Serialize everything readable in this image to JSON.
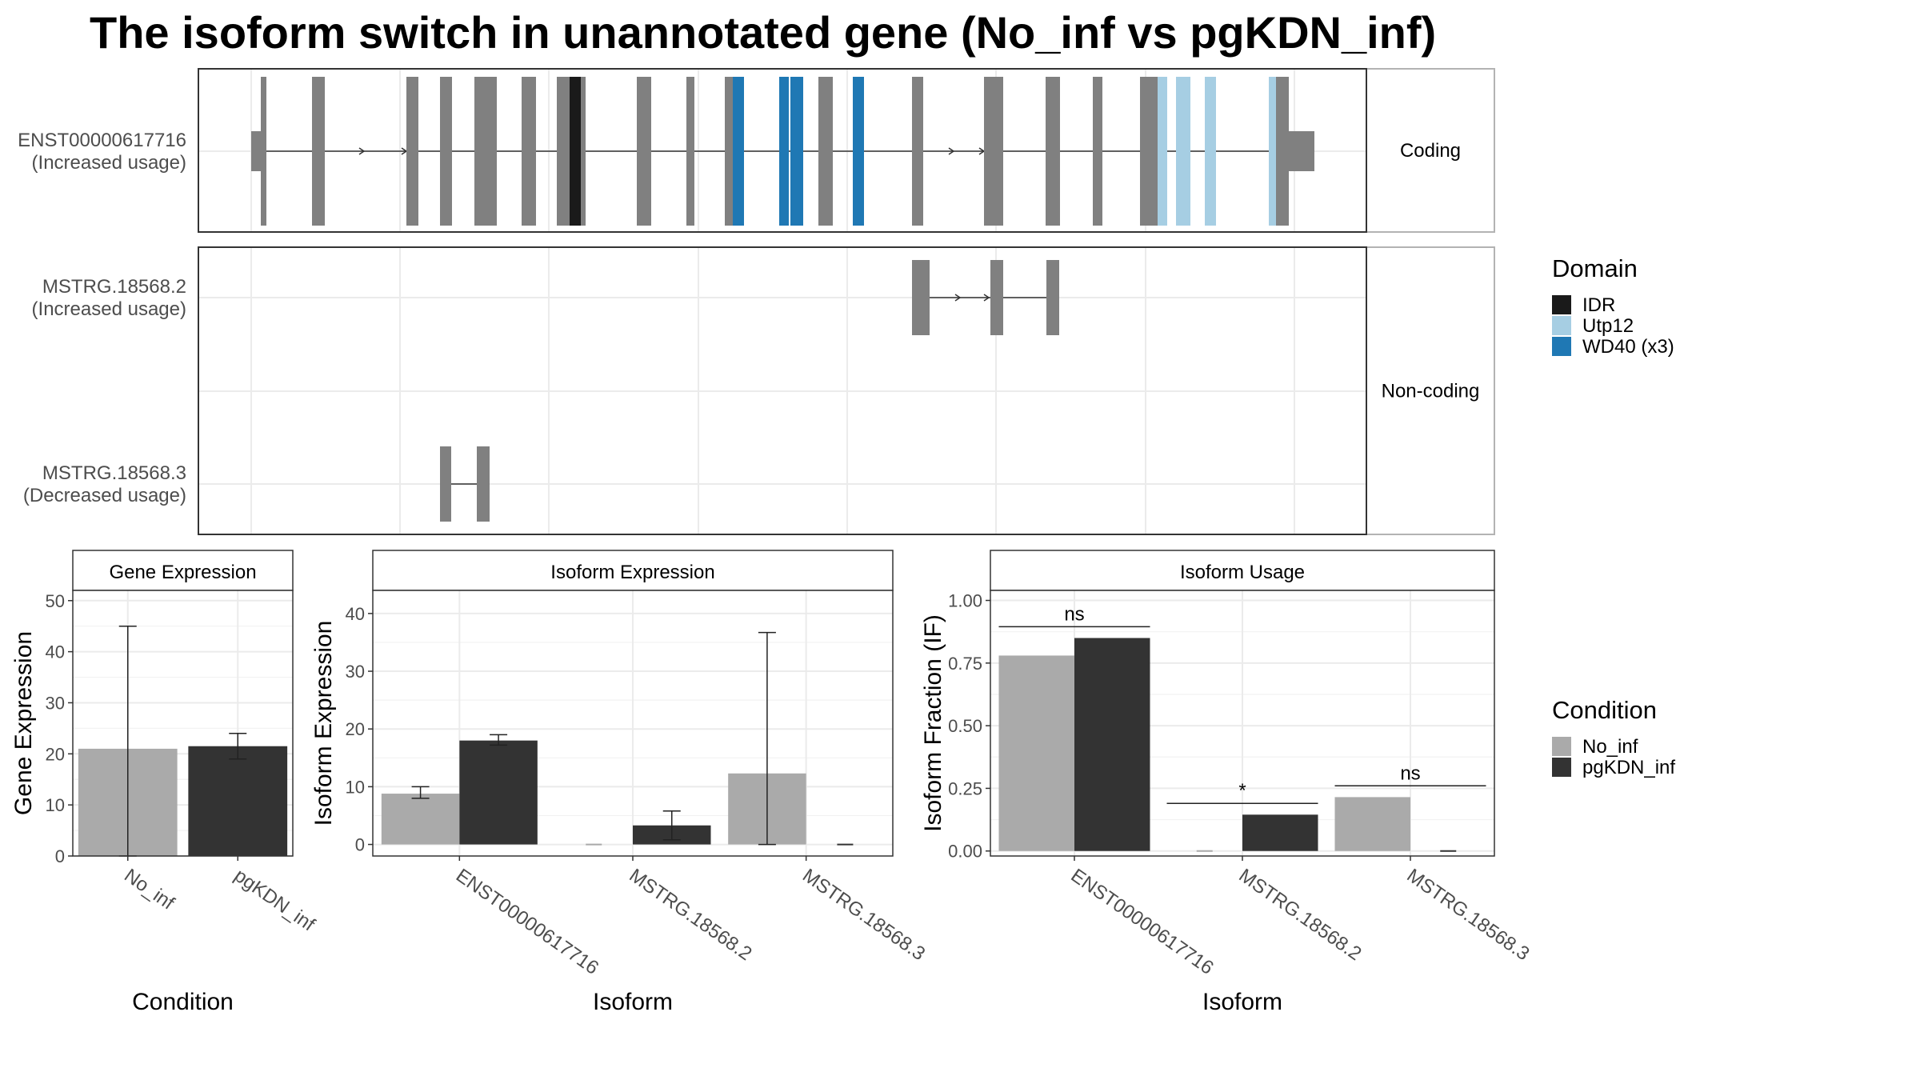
{
  "title": "The isoform switch in unannotated gene (No_inf vs pgKDN_inf)",
  "colors": {
    "exon": "#808080",
    "IDR": "#1a1a1a",
    "Utp12": "#a6cee3",
    "WD40": "#1f78b4",
    "No_inf": "#aaaaaa",
    "pgKDN_inf": "#333333"
  },
  "structure": {
    "panels": [
      {
        "strip": "Coding",
        "tracks": [
          {
            "id": "ENST00000617716",
            "label": "ENST00000617716",
            "sublabel": "(Increased usage)",
            "coding": true
          }
        ]
      },
      {
        "strip": "Non-coding",
        "tracks": [
          {
            "id": "MSTRG.18568.2",
            "label": "MSTRG.18568.2",
            "sublabel": "(Increased usage)",
            "coding": false
          },
          {
            "id": "MSTRG.18568.3",
            "label": "MSTRG.18568.3",
            "sublabel": "(Decreased usage)",
            "coding": false
          }
        ]
      }
    ]
  },
  "domain_legend": {
    "title": "Domain",
    "items": [
      {
        "label": "IDR",
        "color": "#1a1a1a"
      },
      {
        "label": "Utp12",
        "color": "#a6cee3"
      },
      {
        "label": "WD40 (x3)",
        "color": "#1f78b4"
      }
    ]
  },
  "condition_legend": {
    "title": "Condition",
    "items": [
      {
        "label": "No_inf",
        "color": "#aaaaaa"
      },
      {
        "label": "pgKDN_inf",
        "color": "#333333"
      }
    ]
  },
  "chart_data": [
    {
      "type": "bar",
      "strip": "Gene Expression",
      "xlabel": "Condition",
      "ylabel": "Gene Expression",
      "categories": [
        "No_inf",
        "pgKDN_inf"
      ],
      "values": [
        21,
        21.5
      ],
      "error_low": [
        0,
        19
      ],
      "error_high": [
        45,
        24
      ],
      "ylim": [
        0,
        52
      ],
      "yticks": [
        0,
        10,
        20,
        30,
        40,
        50
      ],
      "grid": true
    },
    {
      "type": "bar",
      "strip": "Isoform Expression",
      "xlabel": "Isoform",
      "ylabel": "Isoform Expression",
      "categories": [
        "ENST00000617716",
        "MSTRG.18568.2",
        "MSTRG.18568.3"
      ],
      "series": [
        {
          "name": "No_inf",
          "values": [
            8.8,
            0,
            12.3
          ],
          "error_low": [
            8,
            0,
            0
          ],
          "error_high": [
            10,
            0,
            36.7
          ]
        },
        {
          "name": "pgKDN_inf",
          "values": [
            18,
            3.3,
            0
          ],
          "error_low": [
            17.2,
            0.8,
            0
          ],
          "error_high": [
            19,
            5.8,
            0
          ]
        }
      ],
      "ylim": [
        -2,
        44
      ],
      "yticks": [
        0,
        10,
        20,
        30,
        40
      ],
      "grid": true
    },
    {
      "type": "bar",
      "strip": "Isoform Usage",
      "xlabel": "Isoform",
      "ylabel": "Isoform Fraction (IF)",
      "categories": [
        "ENST00000617716",
        "MSTRG.18568.2",
        "MSTRG.18568.3"
      ],
      "series": [
        {
          "name": "No_inf",
          "values": [
            0.78,
            0,
            0.215
          ]
        },
        {
          "name": "pgKDN_inf",
          "values": [
            0.85,
            0.145,
            0
          ]
        }
      ],
      "significance": [
        "ns",
        "*",
        "ns"
      ],
      "ylim": [
        -0.02,
        1.04
      ],
      "yticks": [
        0.0,
        0.25,
        0.5,
        0.75,
        1.0
      ],
      "ytick_labels": [
        "0.00",
        "0.25",
        "0.50",
        "0.75",
        "1.00"
      ],
      "grid": true
    }
  ]
}
